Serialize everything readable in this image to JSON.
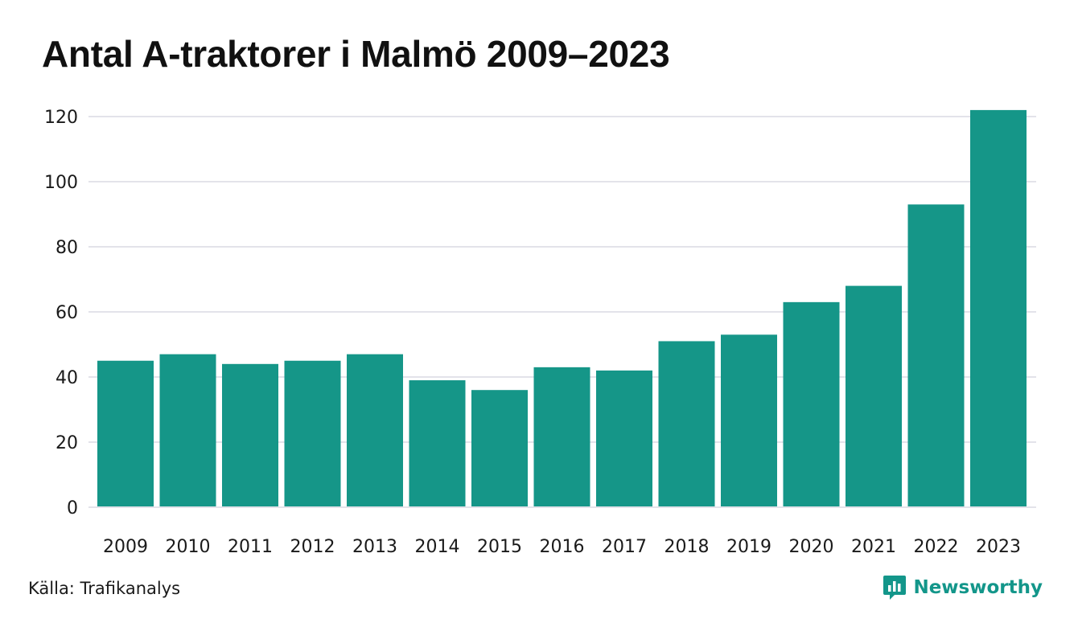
{
  "colors": {
    "bar": "#159688",
    "grid": "#e3e3ea",
    "brand": "#13968a"
  },
  "footer": {
    "source": "Källa: Trafikanalys",
    "brand": "Newsworthy",
    "brand_icon": "newsworthy-logo-icon"
  },
  "chart_data": {
    "type": "bar",
    "title": "Antal A-traktorer i Malmö 2009–2023",
    "categories": [
      "2009",
      "2010",
      "2011",
      "2012",
      "2013",
      "2014",
      "2015",
      "2016",
      "2017",
      "2018",
      "2019",
      "2020",
      "2021",
      "2022",
      "2023"
    ],
    "values": [
      45,
      47,
      44,
      45,
      47,
      39,
      36,
      43,
      42,
      51,
      53,
      63,
      68,
      93,
      122
    ],
    "xlabel": "",
    "ylabel": "",
    "ylim": [
      0,
      120
    ],
    "yticks": [
      0,
      20,
      40,
      60,
      80,
      100,
      120
    ],
    "grid": true,
    "legend": "none"
  }
}
